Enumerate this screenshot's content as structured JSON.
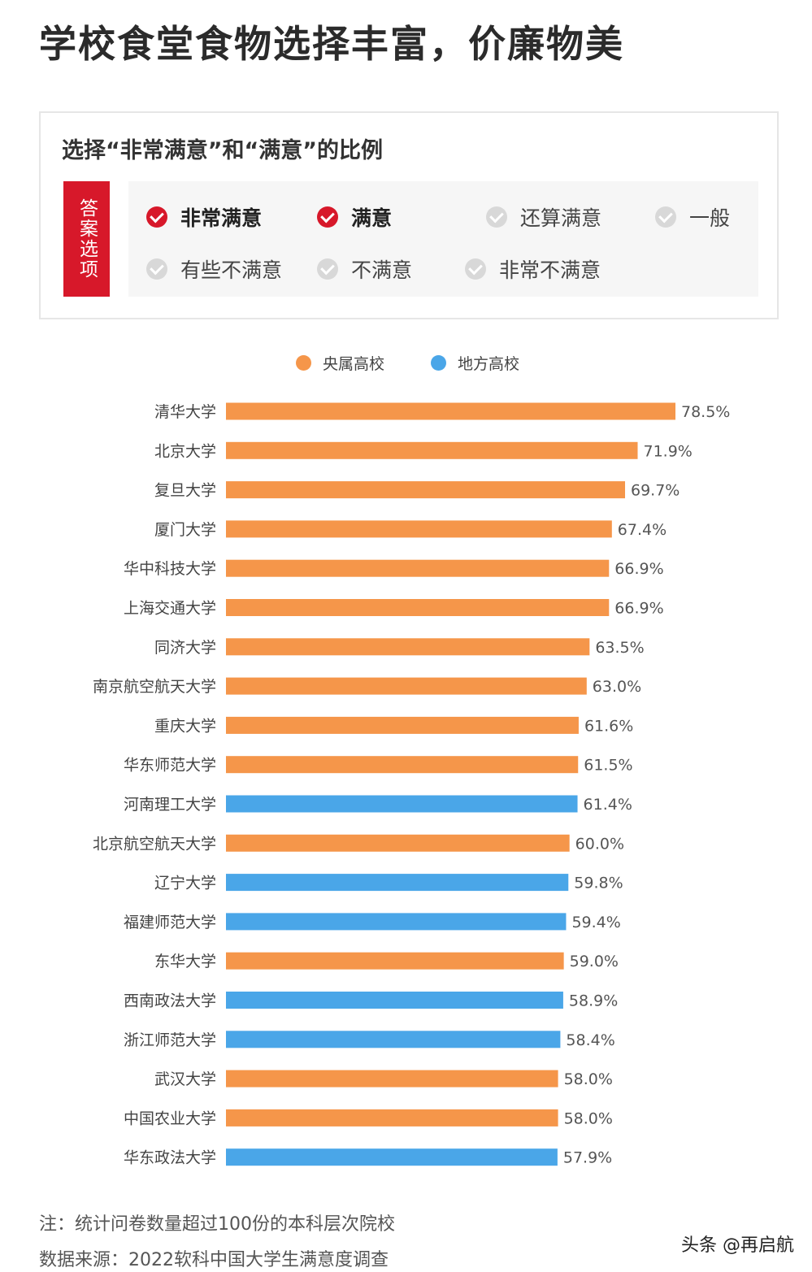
{
  "title": "学校食堂食物选择丰富，价廉物美",
  "options_box": {
    "subtitle": "选择“非常满意”和“满意”的比例",
    "answer_label": "答案选项",
    "options": [
      {
        "label": "非常满意",
        "selected": true
      },
      {
        "label": "满意",
        "selected": true
      },
      {
        "label": "还算满意",
        "selected": false
      },
      {
        "label": "一般",
        "selected": false
      },
      {
        "label": "有些不满意",
        "selected": false
      },
      {
        "label": "不满意",
        "selected": false
      },
      {
        "label": "非常不满意",
        "selected": false
      }
    ]
  },
  "colors": {
    "central": "#f5964a",
    "local": "#4aa6e8",
    "accent": "#d7182a"
  },
  "chart_data": {
    "type": "bar",
    "orientation": "horizontal",
    "legend": [
      {
        "name": "央属高校",
        "color": "#f5964a"
      },
      {
        "name": "地方高校",
        "color": "#4aa6e8"
      }
    ],
    "categories": [
      "清华大学",
      "北京大学",
      "复旦大学",
      "厦门大学",
      "华中科技大学",
      "上海交通大学",
      "同济大学",
      "南京航空航天大学",
      "重庆大学",
      "华东师范大学",
      "河南理工大学",
      "北京航空航天大学",
      "辽宁大学",
      "福建师范大学",
      "东华大学",
      "西南政法大学",
      "浙江师范大学",
      "武汉大学",
      "中国农业大学",
      "华东政法大学"
    ],
    "values": [
      78.5,
      71.9,
      69.7,
      67.4,
      66.9,
      66.9,
      63.5,
      63.0,
      61.6,
      61.5,
      61.4,
      60.0,
      59.8,
      59.4,
      59.0,
      58.9,
      58.4,
      58.0,
      58.0,
      57.9
    ],
    "value_labels": [
      "78.5%",
      "71.9%",
      "69.7%",
      "67.4%",
      "66.9%",
      "66.9%",
      "63.5%",
      "63.0%",
      "61.6%",
      "61.5%",
      "61.4%",
      "60.0%",
      "59.8%",
      "59.4%",
      "59.0%",
      "58.9%",
      "58.4%",
      "58.0%",
      "58.0%",
      "57.9%"
    ],
    "groups": [
      "央属高校",
      "央属高校",
      "央属高校",
      "央属高校",
      "央属高校",
      "央属高校",
      "央属高校",
      "央属高校",
      "央属高校",
      "央属高校",
      "地方高校",
      "央属高校",
      "地方高校",
      "地方高校",
      "央属高校",
      "地方高校",
      "地方高校",
      "央属高校",
      "央属高校",
      "地方高校"
    ],
    "xlim": [
      0,
      78.5
    ],
    "grid": false,
    "legend_position": "top-center"
  },
  "notes": {
    "note": "注：统计问卷数量超过100份的本科层次院校",
    "source": "数据来源：2022软科中国大学生满意度调查"
  },
  "watermark": "头条 @再启航"
}
